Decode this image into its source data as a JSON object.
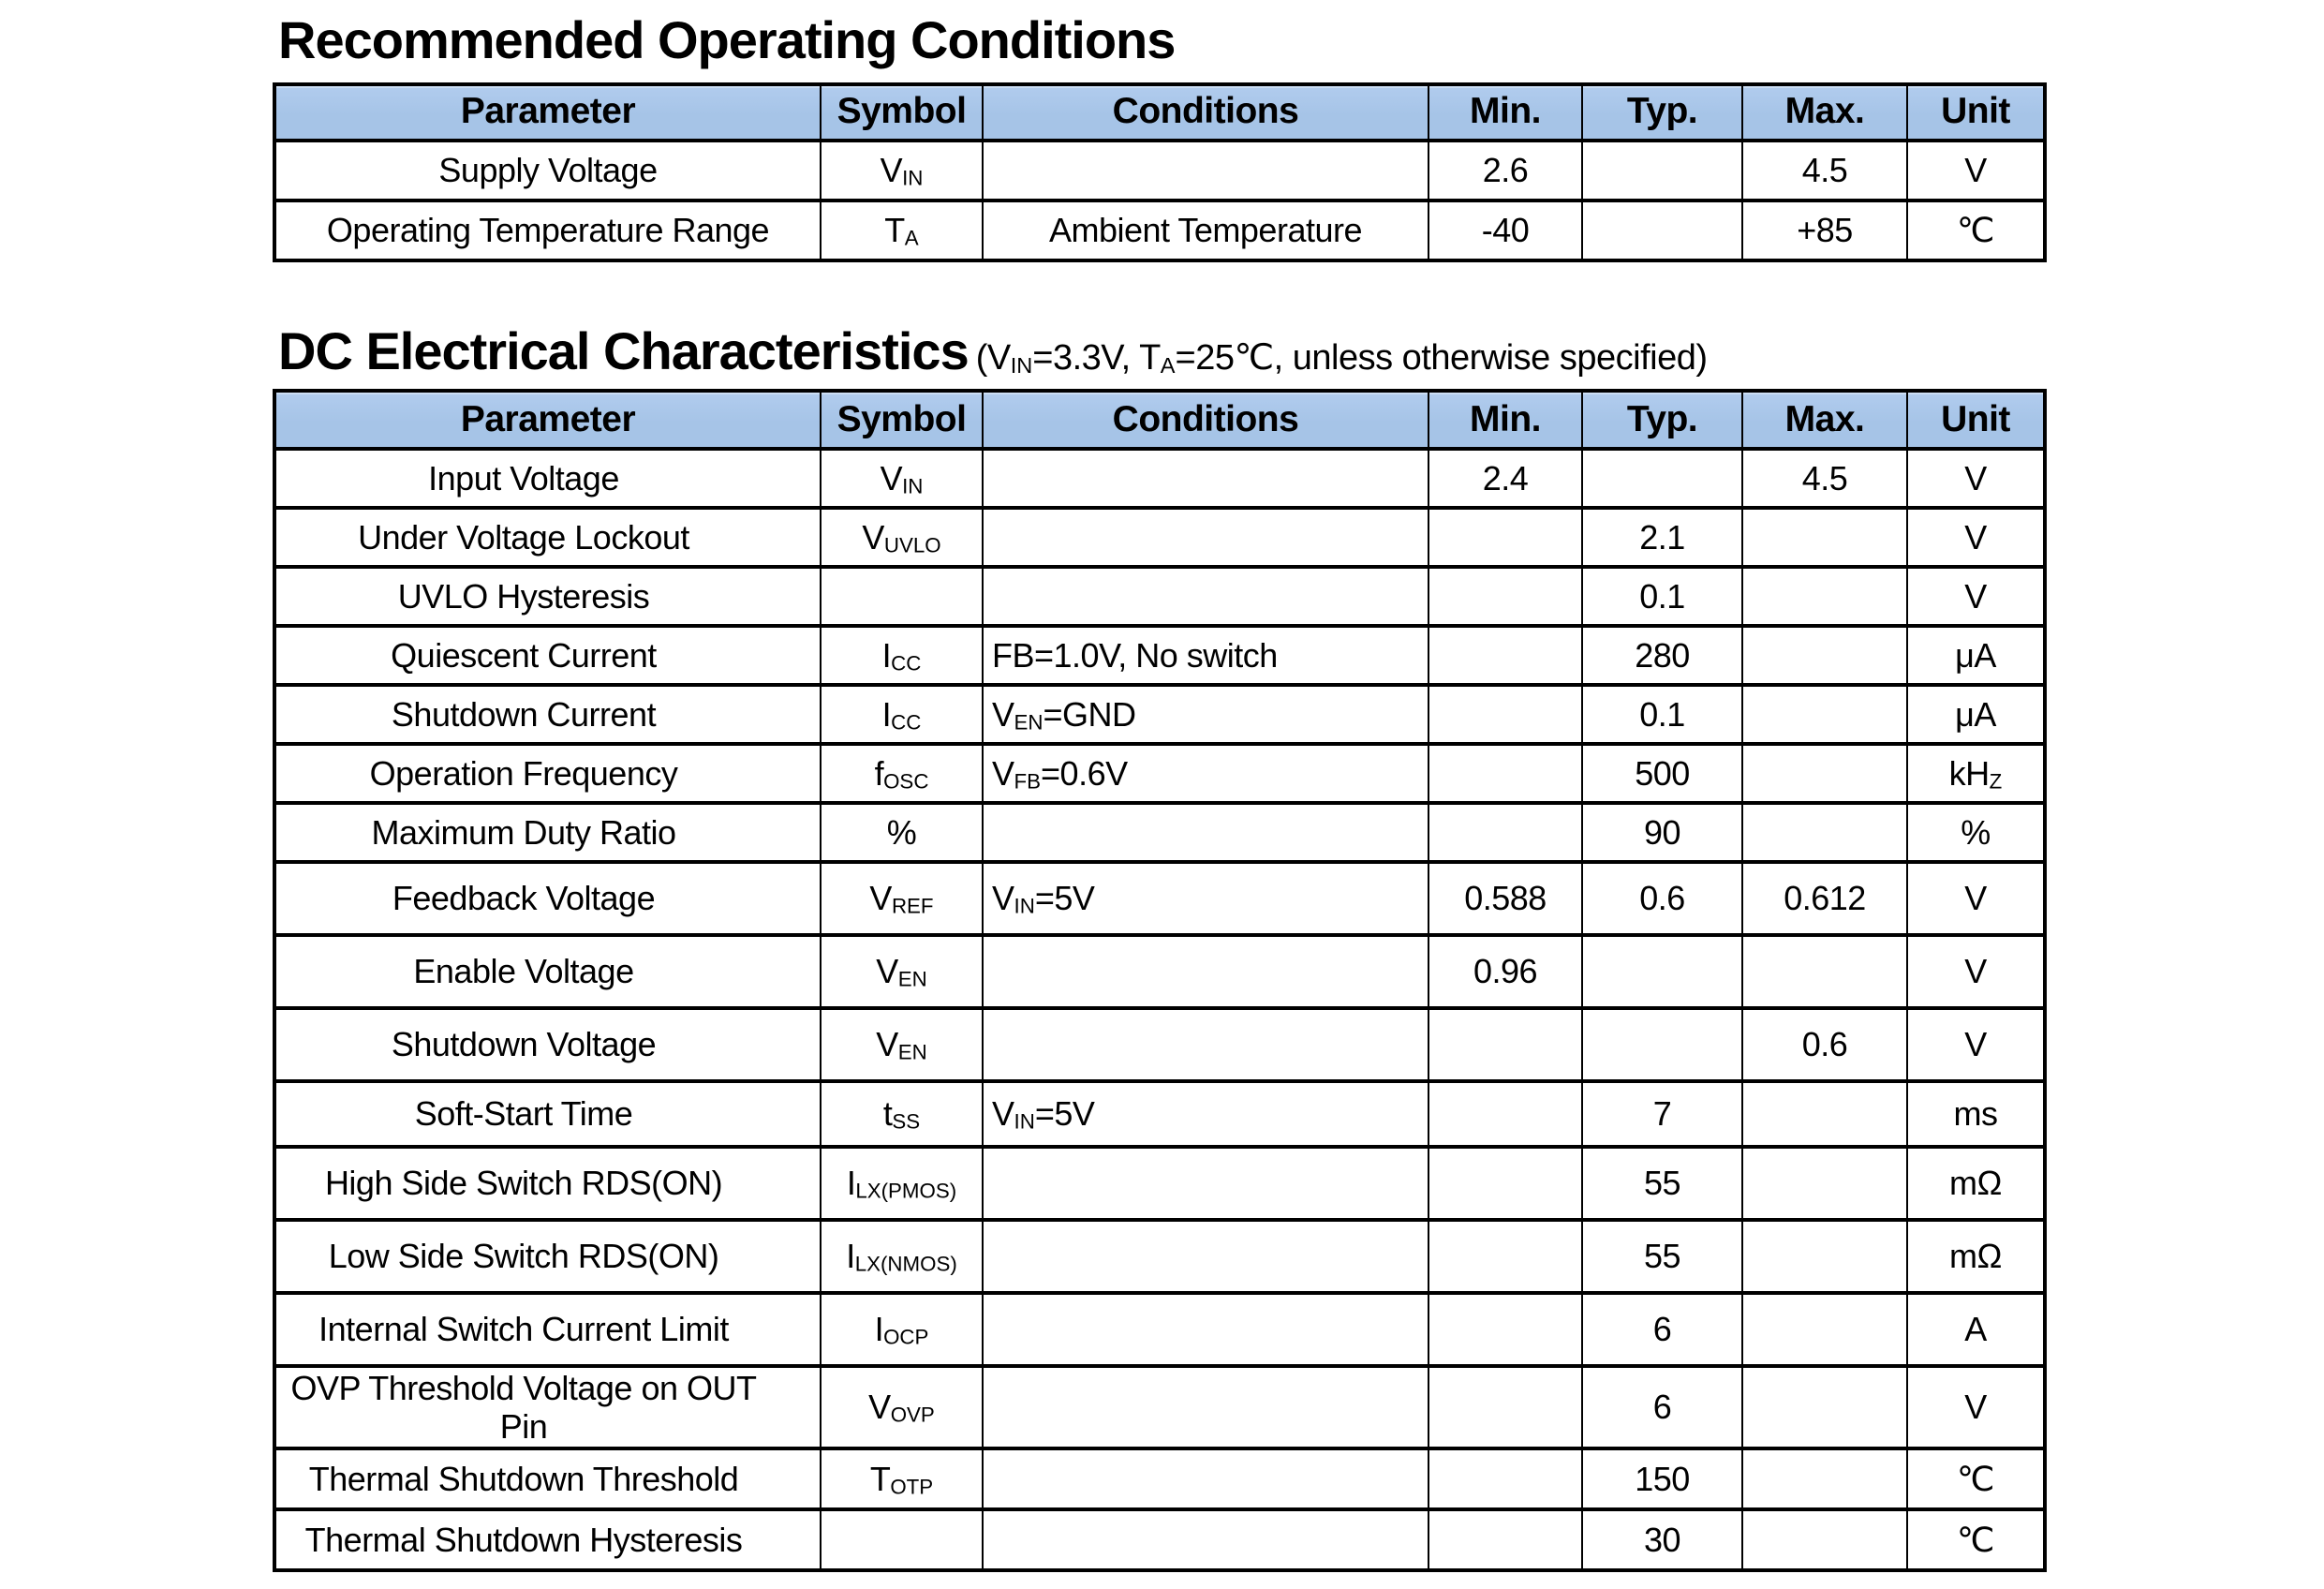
{
  "colors": {
    "header_bg": "#a6c4e7",
    "header_bg_top": "#b1ccee",
    "border": "#000000",
    "text": "#000000",
    "page_bg": "#ffffff"
  },
  "roc_table": {
    "title": "Recommended Operating Conditions",
    "headers": [
      "Parameter",
      "Symbol",
      "Conditions",
      "Min.",
      "Typ.",
      "Max.",
      "Unit"
    ],
    "rows": [
      [
        "Supply Voltage",
        "V~IN~",
        "",
        "2.6",
        "",
        "4.5",
        "V"
      ],
      [
        "Operating Temperature Range",
        "T~A~",
        "Ambient Temperature",
        "-40",
        "",
        "+85",
        "℃"
      ]
    ]
  },
  "dc_table": {
    "title": "DC Electrical Characteristics",
    "subtitle": "(V~IN~=3.3V, T~A~=25℃, unless otherwise specified)",
    "headers": [
      "Parameter",
      "Symbol",
      "Conditions",
      "Min.",
      "Typ.",
      "Max.",
      "Unit"
    ],
    "rows": [
      [
        "Input Voltage",
        "V~IN~",
        "",
        "2.4",
        "",
        "4.5",
        "V"
      ],
      [
        "Under Voltage Lockout",
        "V~UVLO~",
        "",
        "",
        "2.1",
        "",
        "V"
      ],
      [
        "UVLO Hysteresis",
        "",
        "",
        "",
        "0.1",
        "",
        "V"
      ],
      [
        "Quiescent Current",
        "I~CC~",
        "FB=1.0V, No switch",
        "",
        "280",
        "",
        "μA"
      ],
      [
        "Shutdown Current",
        "I~CC~",
        "V~EN~=GND",
        "",
        "0.1",
        "",
        "μA"
      ],
      [
        "Operation Frequency",
        "f~OSC~",
        "V~FB~=0.6V",
        "",
        "500",
        "",
        "kH~Z~"
      ],
      [
        "Maximum Duty Ratio",
        "%",
        "",
        "",
        "90",
        "",
        "%"
      ],
      [
        "Feedback Voltage",
        "V~REF~",
        "V~IN~=5V",
        "0.588",
        "0.6",
        "0.612",
        "V"
      ],
      [
        "Enable Voltage",
        "V~EN~",
        "",
        "0.96",
        "",
        "",
        "V"
      ],
      [
        "Shutdown Voltage",
        "V~EN~",
        "",
        "",
        "",
        "0.6",
        "V"
      ],
      [
        "Soft-Start Time",
        "t~SS~",
        "V~IN~=5V",
        "",
        "7",
        "",
        "ms"
      ],
      [
        "High Side Switch RDS(ON)",
        "I~LX(PMOS)~",
        "",
        "",
        "55",
        "",
        "mΩ"
      ],
      [
        "Low Side Switch RDS(ON)",
        "I~LX(NMOS)~",
        "",
        "",
        "55",
        "",
        "mΩ"
      ],
      [
        "Internal Switch Current Limit",
        "I~OCP~",
        "",
        "",
        "6",
        "",
        "A"
      ],
      [
        "OVP Threshold Voltage on OUT Pin",
        "V~OVP~",
        "",
        "",
        "6",
        "",
        "V"
      ],
      [
        "Thermal Shutdown Threshold",
        "T~OTP~",
        "",
        "",
        "150",
        "",
        "℃"
      ],
      [
        "Thermal Shutdown Hysteresis",
        "",
        "",
        "",
        "30",
        "",
        "℃"
      ]
    ]
  }
}
